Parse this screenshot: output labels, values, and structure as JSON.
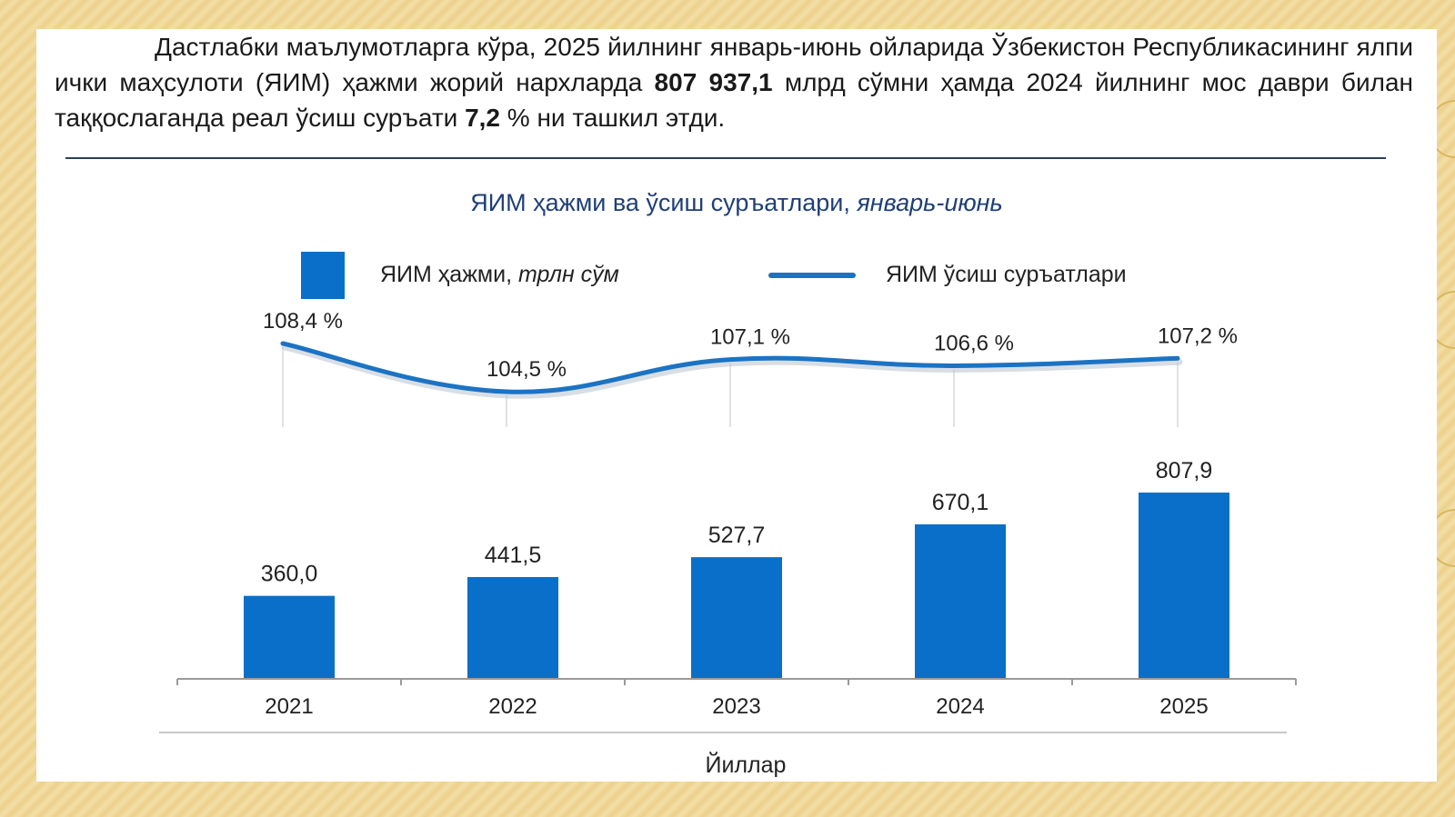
{
  "description": {
    "part1": "Дастлабки маълумотларга кўра, 2025 йилнинг январь-июнь ойларида Ўзбекистон Республикасининг ялпи ички маҳсулоти (ЯИМ) ҳажми жорий нархларда ",
    "gdp_value": "807 937,1",
    "part2": " млрд сўмни ҳамда 2024 йилнинг мос даври билан таққослаганда реал ўсиш суръати ",
    "growth_value": "7,2",
    "part3": " % ни ташкил этди."
  },
  "chart_data": {
    "type": "bar",
    "title": "ЯИМ ҳажми ва ўсиш суръатлари, ",
    "title_italic": "январь-июнь",
    "xlabel": "Йиллар",
    "categories": [
      "2021",
      "2022",
      "2023",
      "2024",
      "2025"
    ],
    "series": [
      {
        "name": "ЯИМ ҳажми, ",
        "name_italic": "трлн сўм",
        "type": "bar",
        "values": [
          360.0,
          441.5,
          527.7,
          670.1,
          807.9
        ],
        "labels": [
          "360,0",
          "441,5",
          "527,7",
          "670,1",
          "807,9"
        ],
        "color": "#0a6fc8"
      },
      {
        "name": "ЯИМ ўсиш суръатлари",
        "type": "line",
        "values": [
          108.4,
          104.5,
          107.1,
          106.6,
          107.2
        ],
        "labels": [
          "108,4 %",
          "104,5 %",
          "107,1 %",
          "106,6 %",
          "107,2 %"
        ],
        "color": "#1c73c3"
      }
    ],
    "grid": false,
    "legend": "top"
  }
}
